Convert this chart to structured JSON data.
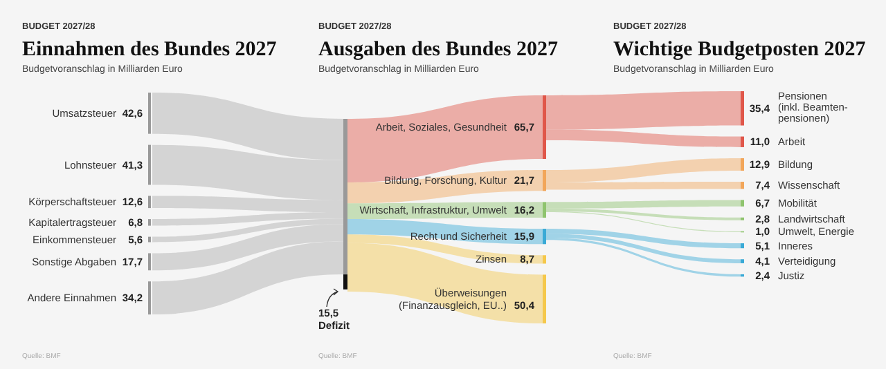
{
  "chart_data": [
    {
      "type": "other",
      "value_labels": [
        "42,6",
        "41,3",
        "12,6",
        "6,8",
        "5,6",
        "17,7",
        "34,2",
        "15,5"
      ],
      "title": "Einnahmen des Bundes 2027",
      "subtitle": "Budgetvoranschlag in Milliarden Euro",
      "annotations": [
        "BUDGET 2027/28",
        "Quelle: BMF"
      ],
      "categories": [
        "Umsatzsteuer",
        "Lohnsteuer",
        "Körperschaftsteuer",
        "Kapitalertragsteuer",
        "Einkommensteuer",
        "Sonstige Abgaben",
        "Andere Einnahmen",
        "Defizit"
      ],
      "values": [
        42.6,
        41.3,
        12.6,
        6.8,
        5.6,
        17.7,
        34.2,
        15.5
      ],
      "colors": [
        "#c8c8c8",
        "#c8c8c8",
        "#c8c8c8",
        "#c8c8c8",
        "#c8c8c8",
        "#c8c8c8",
        "#c8c8c8",
        "#111111"
      ]
    },
    {
      "type": "other",
      "value_labels": [
        "65,7",
        "21,7",
        "16,2",
        "15,9",
        "8,7",
        "50,4"
      ],
      "title": "Ausgaben des Bundes 2027",
      "subtitle": "Budgetvoranschlag in Milliarden Euro",
      "annotations": [
        "BUDGET 2027/28",
        "Quelle: BMF"
      ],
      "categories": [
        "Arbeit, Soziales, Gesundheit",
        "Bildung, Forschung, Kultur",
        "Wirtschaft, Infrastruktur, Umwelt",
        "Recht und Sicherheit",
        "Zinsen",
        "Überweisungen\n(Finanzausgleich, EU..)"
      ],
      "values": [
        65.7,
        21.7,
        16.2,
        15.9,
        8.7,
        50.4
      ],
      "colors": [
        "#e0574a",
        "#f2a65a",
        "#8fc46e",
        "#3aaad6",
        "#f5c84c",
        "#f5c84c"
      ]
    },
    {
      "type": "other",
      "value_labels": [
        "35,4",
        "11,0",
        "12,9",
        "7,4",
        "6,7",
        "2,8",
        "1,0",
        "5,1",
        "4,1",
        "2,4"
      ],
      "title": "Wichtige Budgetposten 2027",
      "subtitle": "Budgetvoranschlag in Milliarden Euro",
      "annotations": [
        "BUDGET 2027/28",
        "Quelle: BMF"
      ],
      "categories": [
        "Pensionen\n(inkl. Beamten-\npensionen)",
        "Arbeit",
        "Bildung",
        "Wissenschaft",
        "Mobilität",
        "Landwirtschaft",
        "Umwelt, Energie",
        "Inneres",
        "Verteidigung",
        "Justiz"
      ],
      "values": [
        35.4,
        11.0,
        12.9,
        7.4,
        6.7,
        2.8,
        1.0,
        5.1,
        4.1,
        2.4
      ],
      "colors": [
        "#e0574a",
        "#e0574a",
        "#f2a65a",
        "#f2a65a",
        "#8fc46e",
        "#8fc46e",
        "#8fc46e",
        "#3aaad6",
        "#3aaad6",
        "#3aaad6"
      ]
    }
  ]
}
